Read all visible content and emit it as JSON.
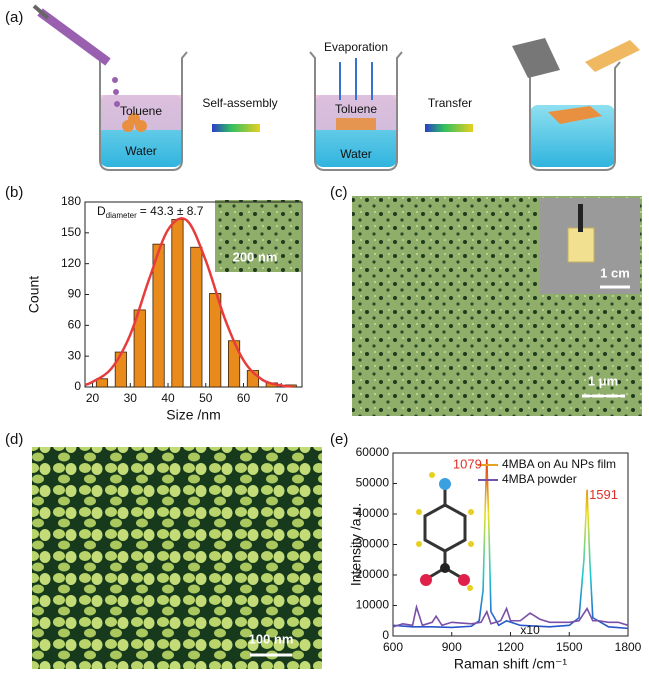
{
  "panel_labels": [
    "(a)",
    "(b)",
    "(c)",
    "(d)",
    "(e)"
  ],
  "scheme": {
    "toluene_1": "Toluene",
    "water_1": "Water",
    "step_1": "Self-assembly",
    "evaporation": "Evaporation",
    "toluene_2": "Toluene",
    "water_2": "Water",
    "step_2": "Transfer"
  },
  "images": {
    "b_inset_scale": "200 nm",
    "c_inset_scale": "1 cm",
    "c_scale": "1 μm",
    "d_scale": "100 nm"
  },
  "chart_data": [
    {
      "type": "bar",
      "xlabel": "Size /nm",
      "ylabel": "Count",
      "annotation": {
        "symbol": "D",
        "subscript": "diameter",
        "text": "= 43.3 ± 8.7"
      },
      "x": [
        22.5,
        27.5,
        32.5,
        37.5,
        42.5,
        47.5,
        52.5,
        57.5,
        62.5,
        67.5,
        72.5
      ],
      "values": [
        8,
        34,
        75,
        139,
        163,
        136,
        91,
        45,
        16,
        4,
        2
      ],
      "color": "#e88a1c",
      "fit": {
        "x": [
          18,
          20,
          25,
          30,
          35,
          40,
          45,
          50,
          55,
          60,
          65,
          70,
          73
        ],
        "values": [
          2,
          5,
          18,
          51,
          105,
          153,
          162,
          123,
          67,
          26,
          7,
          1.5,
          0.5
        ],
        "color": "#e83c3c"
      },
      "xlim": [
        18,
        75.5
      ],
      "xticks": [
        20,
        30,
        40,
        50,
        60,
        70
      ],
      "ylim": [
        0,
        180
      ],
      "yticks": [
        0,
        30,
        60,
        90,
        120,
        150,
        180
      ]
    },
    {
      "type": "line",
      "xlabel": "Raman shift /cm⁻¹",
      "ylabel": "Intensity /a.u.",
      "legend": "upper right",
      "scale_note": "x10",
      "peak_labels": [
        {
          "value": 1079,
          "label": "1079"
        },
        {
          "value": 1591,
          "label": "1591"
        }
      ],
      "series": [
        {
          "name": "4MBA on Au NPs film",
          "color": "#e8a020",
          "gradient": [
            "#2a3fc8",
            "#20c8d0",
            "#e8e020",
            "#e02020"
          ],
          "x": [
            600,
            700,
            800,
            900,
            1000,
            1040,
            1060,
            1070,
            1079,
            1090,
            1100,
            1140,
            1180,
            1250,
            1400,
            1500,
            1550,
            1575,
            1591,
            1605,
            1620,
            1700,
            1800
          ],
          "values": [
            3500,
            3000,
            3000,
            2800,
            3200,
            5000,
            15000,
            40000,
            58000,
            35000,
            8000,
            3500,
            5000,
            3500,
            3000,
            3500,
            6000,
            25000,
            48000,
            25000,
            6000,
            3000,
            2500
          ]
        },
        {
          "name": "4MBA powder",
          "color": "#7a4fa8",
          "x": [
            600,
            650,
            700,
            720,
            750,
            800,
            820,
            850,
            900,
            1000,
            1050,
            1079,
            1100,
            1150,
            1180,
            1200,
            1250,
            1300,
            1350,
            1400,
            1450,
            1500,
            1550,
            1591,
            1620,
            1650,
            1700,
            1750,
            1800
          ],
          "values": [
            3000,
            4000,
            3500,
            9500,
            3500,
            4500,
            6500,
            3500,
            4500,
            4000,
            4500,
            8000,
            4000,
            5000,
            9000,
            5000,
            5000,
            7500,
            5500,
            4500,
            4500,
            4500,
            5000,
            9000,
            5000,
            5000,
            4500,
            4500,
            3500
          ]
        }
      ],
      "xlim": [
        600,
        1800
      ],
      "xticks": [
        600,
        900,
        1200,
        1500,
        1800
      ],
      "ylim": [
        0,
        60000
      ],
      "yticks": [
        0,
        10000,
        20000,
        30000,
        40000,
        50000,
        60000
      ]
    }
  ]
}
